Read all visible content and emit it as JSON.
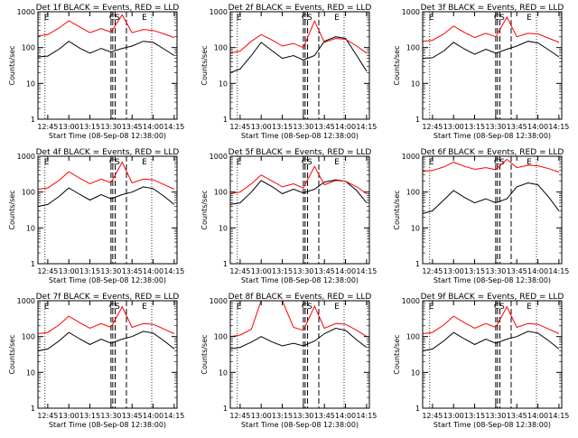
{
  "figure": {
    "x_label": "Start Time (08-Sep-08 12:38:00)",
    "y_label": "Counts/sec",
    "x_tick_labels": [
      "12:45",
      "13:00",
      "13:15",
      "13:30",
      "13:45",
      "14:00",
      "14:15"
    ],
    "y_tick_labels": [
      "1",
      "10",
      "100",
      "1000"
    ],
    "marker_labels": [
      "E",
      "CS",
      "E"
    ],
    "series_colors": {
      "events": "#000000",
      "lld": "#ff0000"
    }
  },
  "chart_data": [
    {
      "type": "line",
      "title": "Det 1f BLACK = Events, RED = LLD",
      "xlabel": "Start Time (08-Sep-08 12:38:00)",
      "ylabel": "Counts/sec",
      "xlim": [
        "12:38",
        "14:17"
      ],
      "ylim": [
        1,
        1000
      ],
      "yscale": "log",
      "x": [
        "12:38",
        "12:45",
        "12:53",
        "13:00",
        "13:08",
        "13:15",
        "13:23",
        "13:30",
        "13:38",
        "13:45",
        "13:53",
        "14:00",
        "14:08",
        "14:15"
      ],
      "series": [
        {
          "name": "Events",
          "values": [
            55,
            58,
            90,
            150,
            95,
            70,
            95,
            75,
            95,
            110,
            150,
            140,
            90,
            60
          ]
        },
        {
          "name": "LLD",
          "values": [
            210,
            230,
            350,
            560,
            370,
            260,
            340,
            270,
            820,
            260,
            320,
            300,
            240,
            190
          ]
        }
      ]
    },
    {
      "type": "line",
      "title": "Det 2f BLACK = Events, RED = LLD",
      "xlabel": "Start Time (08-Sep-08 12:38:00)",
      "ylabel": "Counts/sec",
      "xlim": [
        "12:38",
        "14:17"
      ],
      "ylim": [
        1,
        1000
      ],
      "yscale": "log",
      "x": [
        "12:38",
        "12:45",
        "12:53",
        "13:00",
        "13:08",
        "13:15",
        "13:23",
        "13:30",
        "13:38",
        "13:45",
        "13:53",
        "14:00",
        "14:08",
        "14:15"
      ],
      "series": [
        {
          "name": "Events",
          "values": [
            20,
            25,
            60,
            140,
            80,
            50,
            60,
            45,
            60,
            150,
            200,
            180,
            60,
            22
          ]
        },
        {
          "name": "LLD",
          "values": [
            70,
            80,
            150,
            230,
            160,
            110,
            130,
            100,
            550,
            140,
            180,
            170,
            110,
            70
          ]
        }
      ]
    },
    {
      "type": "line",
      "title": "Det 3f BLACK = Events, RED = LLD",
      "xlabel": "Start Time (08-Sep-08 12:38:00)",
      "ylabel": "Counts/sec",
      "xlim": [
        "12:38",
        "14:17"
      ],
      "ylim": [
        1,
        1000
      ],
      "yscale": "log",
      "x": [
        "12:38",
        "12:45",
        "12:53",
        "13:00",
        "13:08",
        "13:15",
        "13:23",
        "13:30",
        "13:38",
        "13:45",
        "13:53",
        "14:00",
        "14:08",
        "14:15"
      ],
      "series": [
        {
          "name": "Events",
          "values": [
            50,
            52,
            80,
            140,
            90,
            65,
            90,
            70,
            90,
            110,
            150,
            135,
            85,
            55
          ]
        },
        {
          "name": "LLD",
          "values": [
            150,
            160,
            240,
            400,
            260,
            190,
            250,
            200,
            700,
            200,
            250,
            240,
            180,
            140
          ]
        }
      ]
    },
    {
      "type": "line",
      "title": "Det 4f BLACK = Events, RED = LLD",
      "xlabel": "Start Time (08-Sep-08 12:38:00)",
      "ylabel": "Counts/sec",
      "xlim": [
        "12:38",
        "14:17"
      ],
      "ylim": [
        1,
        1000
      ],
      "yscale": "log",
      "x": [
        "12:38",
        "12:45",
        "12:53",
        "13:00",
        "13:08",
        "13:15",
        "13:23",
        "13:30",
        "13:38",
        "13:45",
        "13:53",
        "14:00",
        "14:08",
        "14:15"
      ],
      "series": [
        {
          "name": "Events",
          "values": [
            40,
            45,
            75,
            130,
            85,
            60,
            85,
            65,
            85,
            100,
            140,
            125,
            75,
            45
          ]
        },
        {
          "name": "LLD",
          "values": [
            120,
            130,
            210,
            370,
            240,
            170,
            230,
            180,
            680,
            180,
            230,
            220,
            160,
            120
          ]
        }
      ]
    },
    {
      "type": "line",
      "title": "Det 5f BLACK = Events, RED = LLD",
      "xlabel": "Start Time (08-Sep-08 12:38:00)",
      "ylabel": "Counts/sec",
      "xlim": [
        "12:38",
        "14:17"
      ],
      "ylim": [
        1,
        1000
      ],
      "yscale": "log",
      "x": [
        "12:38",
        "12:45",
        "12:53",
        "13:00",
        "13:08",
        "13:15",
        "13:23",
        "13:30",
        "13:38",
        "13:45",
        "13:53",
        "14:00",
        "14:08",
        "14:15"
      ],
      "series": [
        {
          "name": "Events",
          "values": [
            45,
            50,
            100,
            210,
            140,
            90,
            120,
            95,
            120,
            190,
            220,
            200,
            110,
            50
          ]
        },
        {
          "name": "LLD",
          "values": [
            90,
            100,
            170,
            300,
            200,
            140,
            170,
            130,
            520,
            160,
            210,
            200,
            140,
            90
          ]
        }
      ]
    },
    {
      "type": "line",
      "title": "Det 6f BLACK = Events, RED = LLD",
      "xlabel": "Start Time (08-Sep-08 12:38:00)",
      "ylabel": "Counts/sec",
      "xlim": [
        "12:38",
        "14:17"
      ],
      "ylim": [
        1,
        1000
      ],
      "yscale": "log",
      "x": [
        "12:38",
        "12:45",
        "12:53",
        "13:00",
        "13:08",
        "13:15",
        "13:23",
        "13:30",
        "13:38",
        "13:45",
        "13:53",
        "14:00",
        "14:08",
        "14:15"
      ],
      "series": [
        {
          "name": "Events",
          "values": [
            25,
            30,
            60,
            110,
            70,
            50,
            65,
            50,
            65,
            140,
            180,
            160,
            70,
            30
          ]
        },
        {
          "name": "LLD",
          "values": [
            380,
            400,
            500,
            680,
            520,
            430,
            480,
            420,
            820,
            480,
            560,
            540,
            450,
            360
          ]
        }
      ]
    },
    {
      "type": "line",
      "title": "Det 7f BLACK = Events, RED = LLD",
      "xlabel": "Start Time (08-Sep-08 12:38:00)",
      "ylabel": "Counts/sec",
      "xlim": [
        "12:38",
        "14:17"
      ],
      "ylim": [
        1,
        1000
      ],
      "yscale": "log",
      "x": [
        "12:38",
        "12:45",
        "12:53",
        "13:00",
        "13:08",
        "13:15",
        "13:23",
        "13:30",
        "13:38",
        "13:45",
        "13:53",
        "14:00",
        "14:08",
        "14:15"
      ],
      "series": [
        {
          "name": "Events",
          "values": [
            40,
            45,
            75,
            130,
            85,
            60,
            85,
            65,
            85,
            100,
            140,
            125,
            75,
            45
          ]
        },
        {
          "name": "LLD",
          "values": [
            120,
            130,
            210,
            370,
            240,
            170,
            230,
            180,
            680,
            180,
            230,
            220,
            160,
            120
          ]
        }
      ]
    },
    {
      "type": "line",
      "title": "Det 8f BLACK = Events, RED = LLD",
      "xlabel": "Start Time (08-Sep-08 12:38:00)",
      "ylabel": "Counts/sec",
      "xlim": [
        "12:38",
        "14:17"
      ],
      "ylim": [
        1,
        1000
      ],
      "yscale": "log",
      "x": [
        "12:38",
        "12:45",
        "12:53",
        "13:00",
        "13:08",
        "13:15",
        "13:23",
        "13:30",
        "13:38",
        "13:45",
        "13:53",
        "14:00",
        "14:08",
        "14:15"
      ],
      "series": [
        {
          "name": "Events",
          "values": [
            45,
            50,
            70,
            100,
            70,
            55,
            65,
            55,
            75,
            120,
            170,
            150,
            80,
            50
          ]
        },
        {
          "name": "LLD",
          "values": [
            100,
            110,
            160,
            1000,
            1000,
            1000,
            180,
            150,
            700,
            170,
            230,
            220,
            150,
            100
          ]
        }
      ]
    },
    {
      "type": "line",
      "title": "Det 9f BLACK = Events, RED = LLD",
      "xlabel": "Start Time (08-Sep-08 12:38:00)",
      "ylabel": "Counts/sec",
      "xlim": [
        "12:38",
        "14:17"
      ],
      "ylim": [
        1,
        1000
      ],
      "yscale": "log",
      "x": [
        "12:38",
        "12:45",
        "12:53",
        "13:00",
        "13:08",
        "13:15",
        "13:23",
        "13:30",
        "13:38",
        "13:45",
        "13:53",
        "14:00",
        "14:08",
        "14:15"
      ],
      "series": [
        {
          "name": "Events",
          "values": [
            40,
            45,
            75,
            130,
            85,
            60,
            85,
            65,
            85,
            100,
            140,
            125,
            75,
            45
          ]
        },
        {
          "name": "LLD",
          "values": [
            120,
            130,
            210,
            370,
            240,
            170,
            230,
            180,
            680,
            180,
            230,
            220,
            160,
            120
          ]
        }
      ]
    }
  ]
}
